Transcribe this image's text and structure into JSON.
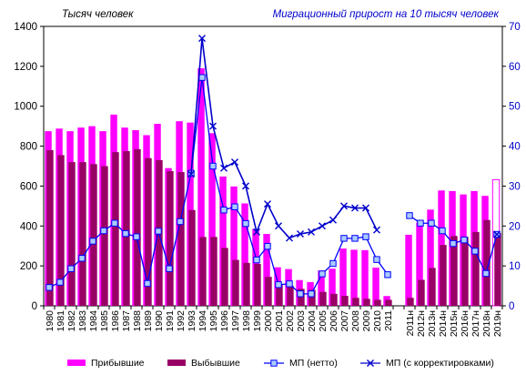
{
  "chart_data": {
    "type": "bar",
    "left_axis_title": "Тысяч человек",
    "right_axis_title": "Миграционный прирост на 10 тысяч человек",
    "ylim_left": [
      0,
      1400
    ],
    "yticks_left": [
      0,
      200,
      400,
      600,
      800,
      1000,
      1200,
      1400
    ],
    "ylim_right": [
      0,
      70
    ],
    "yticks_right": [
      0,
      10,
      20,
      30,
      40,
      50,
      60,
      70
    ],
    "categories": [
      "1980",
      "1981",
      "1982",
      "1983",
      "1984",
      "1985",
      "1986",
      "1987",
      "1988",
      "1989",
      "1990",
      "1991",
      "1992",
      "1993",
      "1994",
      "1995",
      "1996",
      "1997",
      "1998",
      "1999",
      "2000",
      "2001",
      "2002",
      "2003",
      "2004",
      "2005",
      "2006",
      "2007",
      "2008",
      "2009",
      "2010",
      "2011",
      "",
      "2011н",
      "2012н",
      "2013н",
      "2014н",
      "2015н",
      "2016н",
      "2017н",
      "2018н",
      "2019н"
    ],
    "series": [
      {
        "name": "Прибывшие",
        "kind": "bar",
        "axis": "left",
        "color": "#ff00ff",
        "values": [
          875,
          888,
          875,
          893,
          900,
          875,
          958,
          893,
          880,
          855,
          912,
          690,
          925,
          918,
          1190,
          865,
          648,
          598,
          513,
          385,
          360,
          193,
          184,
          129,
          119,
          177,
          186,
          287,
          281,
          279,
          191,
          49,
          null,
          356,
          417,
          482,
          578,
          575,
          558,
          575,
          551,
          632
        ],
        "hollow_last": true
      },
      {
        "name": "Выбывшие",
        "kind": "bar",
        "axis": "left",
        "color": "#990066",
        "values": [
          780,
          755,
          720,
          720,
          710,
          700,
          770,
          775,
          785,
          740,
          730,
          675,
          670,
          480,
          345,
          345,
          290,
          230,
          215,
          210,
          145,
          110,
          100,
          85,
          80,
          70,
          60,
          50,
          40,
          35,
          30,
          30,
          null,
          40,
          130,
          190,
          305,
          350,
          345,
          370,
          430,
          365
        ]
      },
      {
        "name": "МП  (нетто)",
        "kind": "line",
        "axis": "right",
        "color": "#0000ff",
        "marker": "square",
        "values": [
          4.6,
          5.9,
          9.3,
          11.9,
          16.2,
          18.8,
          20.7,
          18.1,
          17.3,
          5.6,
          18.7,
          9.3,
          21.1,
          33.2,
          57.2,
          35.0,
          24.0,
          24.8,
          20.6,
          11.5,
          14.9,
          5.3,
          5.5,
          3.0,
          3.0,
          8.0,
          10.6,
          16.9,
          16.9,
          17.3,
          11.6,
          7.8,
          null,
          22.6,
          20.7,
          20.7,
          18.8,
          15.6,
          16.5,
          13.7,
          8.1,
          17.9
        ]
      },
      {
        "name": "МП  (с корректировками)",
        "kind": "line",
        "axis": "right",
        "color": "#0000cc",
        "marker": "x",
        "values": [
          null,
          null,
          null,
          null,
          null,
          null,
          null,
          null,
          null,
          null,
          null,
          null,
          null,
          33.0,
          67.0,
          45.0,
          34.5,
          36.0,
          30.0,
          18.5,
          25.5,
          20.0,
          17.0,
          18.0,
          18.5,
          20.0,
          21.5,
          25.0,
          24.5,
          24.5,
          19.0,
          null,
          null,
          null,
          null,
          null,
          null,
          null,
          null,
          null,
          null,
          17.9
        ]
      }
    ],
    "legend_position": "bottom",
    "grid": false
  }
}
